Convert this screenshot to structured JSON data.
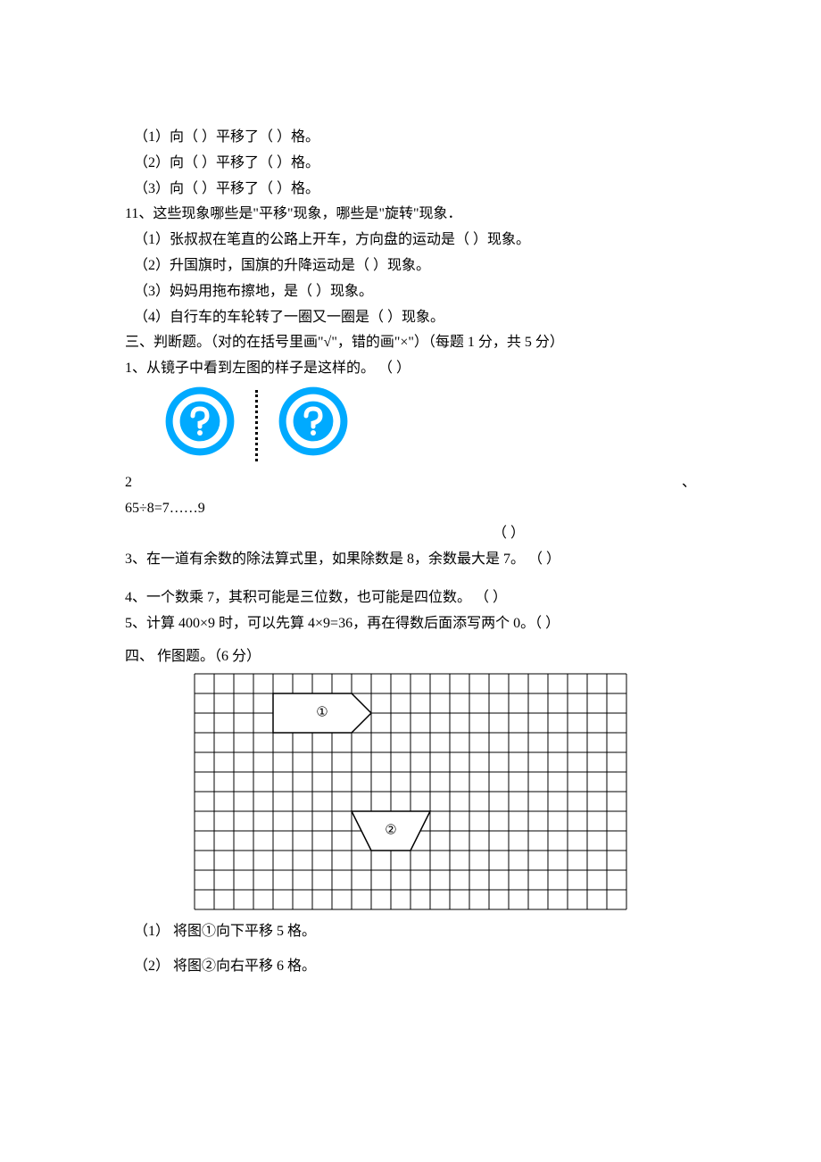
{
  "q10": {
    "sub1": "（1）向（   ）平移了（   ）格。",
    "sub2": "（2）向（   ）平移了（   ）格。",
    "sub3": "（3）向（   ）平移了（   ）格。"
  },
  "q11": {
    "stem": "11、这些现象哪些是\"平移\"现象，哪些是\"旋转\"现象．",
    "sub1": "（1）张叔叔在笔直的公路上开车，方向盘的运动是（      ）现象。",
    "sub2": "（2）升国旗时，国旗的升降运动是（      ）现象。",
    "sub3": "（3）妈妈用拖布擦地，是（      ）现象。",
    "sub4": "（4）自行车的车轮转了一圈又一圈是（      ）现象。"
  },
  "section3": {
    "title": "三、判断题。（对的在括号里画\"√\"，错的画\"×\"）（每题 1 分，共 5 分）",
    "q1": "1、从镜子中看到左图的样子是这样的。      （       ）",
    "q2_left": "2",
    "q2_right": "、",
    "q2_expr": "65÷8=7……9",
    "q2_paren": "（      ）",
    "q3": "3、在一道有余数的除法算式里，如果除数是 8，余数最大是 7。         （     ）",
    "q4": "4、一个数乘 7，其积可能是三位数，也可能是四位数。           （    ）",
    "q5": "5、计算 400×9 时，可以先算 4×9=36，再在得数后面添写两个 0。（ ）"
  },
  "section4": {
    "title": "四、 作图题。（6 分）",
    "sub1": "（1） 将图①向下平移 5 格。",
    "sub2": "（2） 将图②向右平移 6 格。"
  },
  "mirror_icon": {
    "outer_color": "#00aaff",
    "inner_fill": "#ffffff",
    "inner_stroke": "#00aaff",
    "mark_color": "#00aaff",
    "size": 80
  },
  "grid": {
    "cols": 22,
    "rows": 12,
    "cell": 22,
    "stroke": "#000000",
    "fill": "#ffffff",
    "shape1": {
      "label": "①",
      "points_cells": [
        [
          4,
          1
        ],
        [
          8,
          1
        ],
        [
          9,
          2
        ],
        [
          8,
          3
        ],
        [
          4,
          3
        ]
      ],
      "label_pos_cells": [
        6.5,
        2
      ]
    },
    "shape2": {
      "label": "②",
      "points_cells": [
        [
          8,
          7
        ],
        [
          12,
          7
        ],
        [
          11,
          9
        ],
        [
          9,
          9
        ]
      ],
      "label_pos_cells": [
        10,
        8
      ]
    }
  }
}
